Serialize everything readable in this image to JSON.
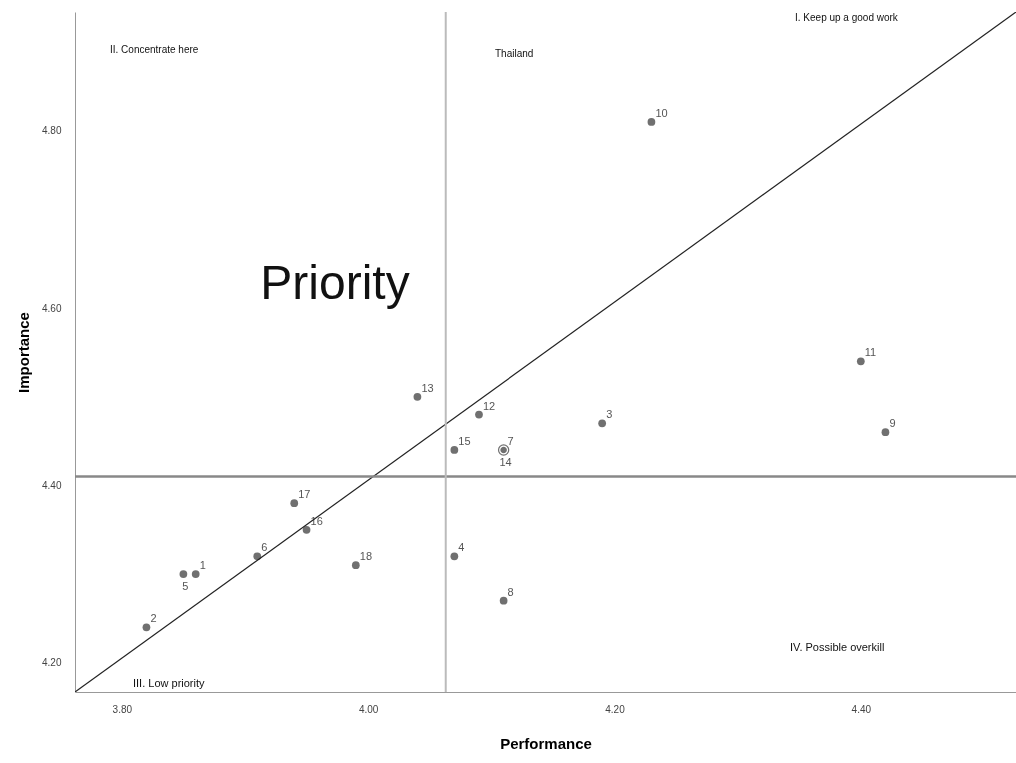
{
  "chart_data": {
    "type": "scatter",
    "xlabel": "Performance",
    "ylabel": "Importance",
    "annotations": [
      "II. Concentrate here",
      "Thailand",
      "I. Keep up a good work",
      "Priority",
      "III. Low priority",
      "IV. Possible overkill"
    ],
    "xlim": [
      3.762,
      4.526
    ],
    "ylim": [
      4.167,
      4.934
    ],
    "xticks": [
      {
        "value": 3.8,
        "label": "3.80"
      },
      {
        "value": 4.0,
        "label": "4.00"
      },
      {
        "value": 4.2,
        "label": "4.20"
      },
      {
        "value": 4.4,
        "label": "4.40"
      }
    ],
    "yticks": [
      {
        "value": 4.2,
        "label": "4.20"
      },
      {
        "value": 4.4,
        "label": "4.40"
      },
      {
        "value": 4.6,
        "label": "4.60"
      },
      {
        "value": 4.8,
        "label": "4.80"
      }
    ],
    "grid": false,
    "legend": false,
    "marker": "circle",
    "ref_lines": [
      {
        "axis": "y",
        "value": 4.41,
        "color": "#888888"
      },
      {
        "axis": "x",
        "value": 4.063,
        "color": "#bbbbbb"
      }
    ],
    "series": [
      {
        "name": "1",
        "color": "#707070",
        "x": [
          3.86
        ],
        "values": [
          4.3
        ]
      },
      {
        "name": "2",
        "color": "#707070",
        "x": [
          3.82
        ],
        "values": [
          4.24
        ]
      },
      {
        "name": "3",
        "color": "#707070",
        "x": [
          4.19
        ],
        "values": [
          4.47
        ]
      },
      {
        "name": "4",
        "color": "#707070",
        "x": [
          4.07
        ],
        "values": [
          4.32
        ]
      },
      {
        "name": "5",
        "color": "#707070",
        "x": [
          3.85
        ],
        "values": [
          4.3
        ]
      },
      {
        "name": "6",
        "color": "#707070",
        "x": [
          3.91
        ],
        "values": [
          4.32
        ]
      },
      {
        "name": "7",
        "color": "#707070",
        "x": [
          4.11
        ],
        "values": [
          4.44
        ]
      },
      {
        "name": "8",
        "color": "#707070",
        "x": [
          4.11
        ],
        "values": [
          4.27
        ]
      },
      {
        "name": "9",
        "color": "#707070",
        "x": [
          4.42
        ],
        "values": [
          4.46
        ]
      },
      {
        "name": "10",
        "color": "#707070",
        "x": [
          4.23
        ],
        "values": [
          4.81
        ]
      },
      {
        "name": "11",
        "color": "#707070",
        "x": [
          4.4
        ],
        "values": [
          4.54
        ]
      },
      {
        "name": "12",
        "color": "#707070",
        "x": [
          4.09
        ],
        "values": [
          4.48
        ]
      },
      {
        "name": "13",
        "color": "#707070",
        "x": [
          4.04
        ],
        "values": [
          4.5
        ]
      },
      {
        "name": "14",
        "color": "#707070",
        "x": [
          4.11
        ],
        "values": [
          4.44
        ]
      },
      {
        "name": "15",
        "color": "#707070",
        "x": [
          4.07
        ],
        "values": [
          4.44
        ]
      },
      {
        "name": "16",
        "color": "#707070",
        "x": [
          3.95
        ],
        "values": [
          4.35
        ]
      },
      {
        "name": "17",
        "color": "#707070",
        "x": [
          3.94
        ],
        "values": [
          4.38
        ]
      },
      {
        "name": "18",
        "color": "#707070",
        "x": [
          3.99
        ],
        "values": [
          4.31
        ]
      },
      {
        "type": "line",
        "marker": "none",
        "color": "#222222",
        "x": [
          3.762,
          4.526
        ],
        "values": [
          4.167,
          4.934
        ]
      }
    ]
  }
}
